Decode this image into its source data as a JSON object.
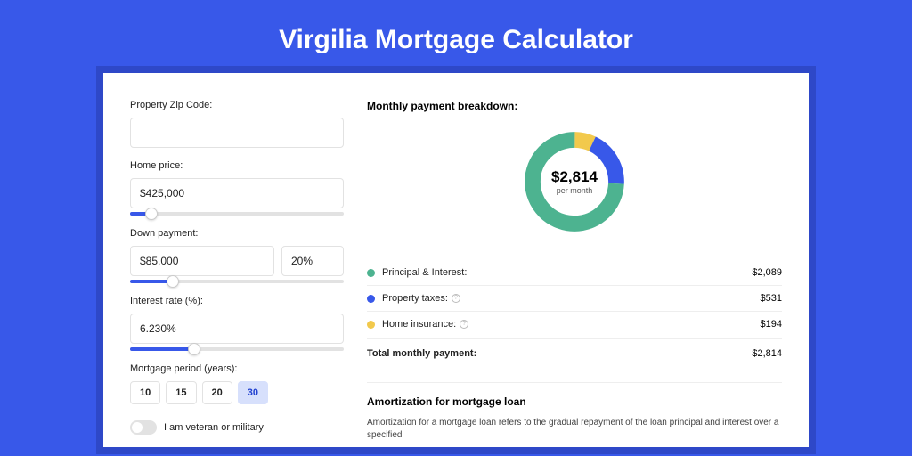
{
  "title": "Virgilia Mortgage Calculator",
  "colors": {
    "page_bg": "#3858e9",
    "card_shadow": "#2e48c8",
    "slider_fill": "#3858e9",
    "period_active_bg": "#d7e0fc",
    "period_active_fg": "#2242d0"
  },
  "form": {
    "zip": {
      "label": "Property Zip Code:",
      "value": ""
    },
    "home_price": {
      "label": "Home price:",
      "value": "$425,000",
      "slider_pct": 10
    },
    "down_payment": {
      "label": "Down payment:",
      "value": "$85,000",
      "pct_value": "20%",
      "slider_pct": 20
    },
    "interest_rate": {
      "label": "Interest rate (%):",
      "value": "6.230%",
      "slider_pct": 30
    },
    "period": {
      "label": "Mortgage period (years):",
      "options": [
        "10",
        "15",
        "20",
        "30"
      ],
      "active": "30"
    },
    "veteran": {
      "label": "I am veteran or military",
      "on": false
    }
  },
  "breakdown": {
    "title": "Monthly payment breakdown:",
    "center_amount": "$2,814",
    "center_sub": "per month",
    "donut": {
      "type": "donut",
      "thickness": 18,
      "background": "#ffffff",
      "segments": [
        {
          "label": "Principal & Interest:",
          "value": "$2,089",
          "num": 2089,
          "color": "#4db390",
          "info": false
        },
        {
          "label": "Property taxes:",
          "value": "$531",
          "num": 531,
          "color": "#3858e9",
          "info": true
        },
        {
          "label": "Home insurance:",
          "value": "$194",
          "num": 194,
          "color": "#f2c94c",
          "info": true
        }
      ]
    },
    "total": {
      "label": "Total monthly payment:",
      "value": "$2,814"
    }
  },
  "amortization": {
    "title": "Amortization for mortgage loan",
    "text": "Amortization for a mortgage loan refers to the gradual repayment of the loan principal and interest over a specified"
  }
}
